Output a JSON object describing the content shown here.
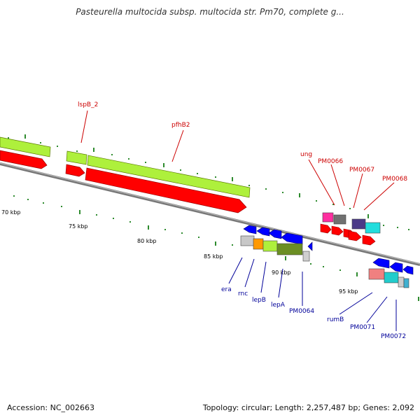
{
  "title": "Pasteurella multocida subsp. multocida str. Pm70, complete g...",
  "footer": {
    "accession": "Accession: NC_002663",
    "summary": "Topology: circular; Length: 2,257,487 bp; Genes: 2,092"
  },
  "colors": {
    "backbone": "#8a8a8a",
    "forward_cds": "#ff0000",
    "reverse_cds": "#0000ff",
    "tick": "#2e8b2e",
    "forward_label": "#cc0000",
    "reverse_label": "#000099"
  },
  "scale_labels": [
    "70 kbp",
    "75 kbp",
    "80 kbp",
    "85 kbp",
    "90 kbp",
    "95 kbp"
  ],
  "forward_gene_labels": [
    "lspB_2",
    "pfhB2",
    "ung",
    "PM0066",
    "PM0067",
    "PM0068"
  ],
  "reverse_gene_labels": [
    "era",
    "rnc",
    "lepB",
    "lepA",
    "PM0064",
    "rumB",
    "PM0071",
    "PM0072"
  ]
}
